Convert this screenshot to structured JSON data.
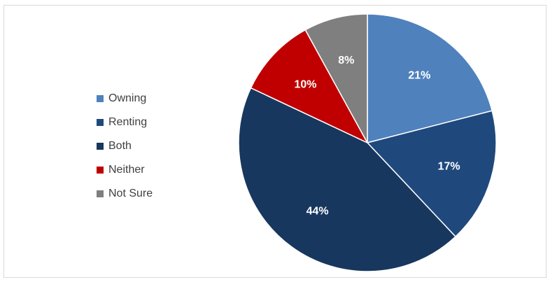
{
  "chart_data": {
    "type": "pie",
    "title": "",
    "legend_position": "left",
    "categories": [
      "Owning",
      "Renting",
      "Both",
      "Neither",
      "Not Sure"
    ],
    "values": [
      21,
      17,
      44,
      10,
      8
    ],
    "labels": [
      "21%",
      "17%",
      "44%",
      "10%",
      "8%"
    ],
    "colors": [
      "#4f81bd",
      "#1f497d",
      "#17375e",
      "#c00000",
      "#7f7f7f"
    ],
    "start_angle": "12 o'clock",
    "direction": "clockwise"
  }
}
